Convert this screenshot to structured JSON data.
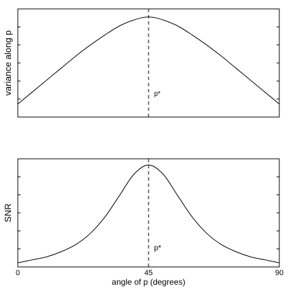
{
  "chart_data": [
    {
      "type": "line",
      "ylabel": "variance along p",
      "annotation": "p*",
      "vline_x": 45,
      "xlim": [
        0,
        90
      ],
      "ylim": [
        0,
        1.08
      ],
      "x": [
        0,
        5,
        10,
        15,
        20,
        25,
        30,
        35,
        40,
        45,
        50,
        55,
        60,
        65,
        70,
        75,
        80,
        85,
        90
      ],
      "series": [
        {
          "values": [
            0.13,
            0.25,
            0.37,
            0.49,
            0.61,
            0.72,
            0.82,
            0.91,
            0.97,
            1.0,
            0.97,
            0.91,
            0.82,
            0.72,
            0.61,
            0.49,
            0.37,
            0.25,
            0.13
          ]
        }
      ]
    },
    {
      "type": "line",
      "ylabel": "SNR",
      "annotation": "p*",
      "vline_x": 45,
      "xlabel": "angle of p   (degrees)",
      "xticks": [
        0,
        45,
        90
      ],
      "xlim": [
        0,
        90
      ],
      "ylim": [
        0,
        1.06
      ],
      "x": [
        0,
        5,
        10,
        15,
        20,
        25,
        30,
        35,
        40,
        45,
        50,
        55,
        60,
        65,
        70,
        75,
        80,
        85,
        90
      ],
      "series": [
        {
          "values": [
            0.04,
            0.07,
            0.1,
            0.15,
            0.22,
            0.33,
            0.49,
            0.7,
            0.91,
            1.0,
            0.91,
            0.7,
            0.49,
            0.33,
            0.22,
            0.15,
            0.1,
            0.07,
            0.04
          ]
        }
      ]
    }
  ]
}
